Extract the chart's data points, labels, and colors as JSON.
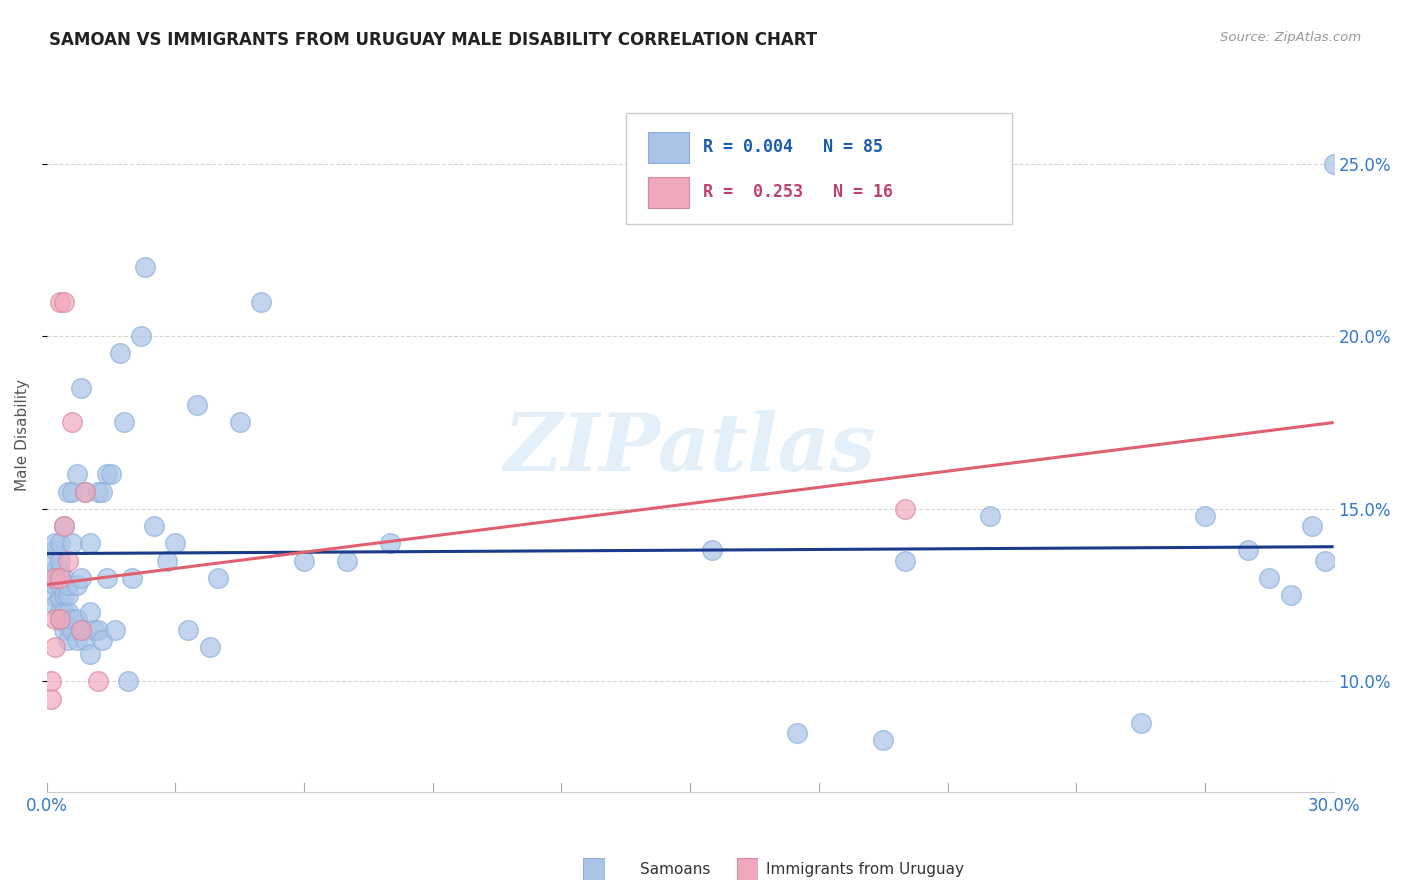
{
  "title": "SAMOAN VS IMMIGRANTS FROM URUGUAY MALE DISABILITY CORRELATION CHART",
  "source": "Source: ZipAtlas.com",
  "ylabel": "Male Disability",
  "ylabel_right_vals": [
    0.1,
    0.15,
    0.2,
    0.25
  ],
  "xlim": [
    0.0,
    0.3
  ],
  "ylim": [
    0.068,
    0.275
  ],
  "watermark": "ZIPatlas",
  "blue_color": "#aac4e8",
  "pink_color": "#f0a8bc",
  "line_blue_color": "#1a3a8c",
  "line_pink_color": "#e06070",
  "grid_color": "#cccccc",
  "background_color": "#ffffff",
  "samoans_x": [
    0.001,
    0.001,
    0.001,
    0.002,
    0.002,
    0.002,
    0.002,
    0.002,
    0.003,
    0.003,
    0.003,
    0.003,
    0.003,
    0.003,
    0.003,
    0.004,
    0.004,
    0.004,
    0.004,
    0.004,
    0.005,
    0.005,
    0.005,
    0.005,
    0.005,
    0.005,
    0.006,
    0.006,
    0.006,
    0.006,
    0.007,
    0.007,
    0.007,
    0.007,
    0.008,
    0.008,
    0.008,
    0.009,
    0.009,
    0.01,
    0.01,
    0.01,
    0.011,
    0.012,
    0.012,
    0.013,
    0.013,
    0.014,
    0.014,
    0.015,
    0.016,
    0.017,
    0.018,
    0.019,
    0.02,
    0.022,
    0.023,
    0.025,
    0.028,
    0.03,
    0.033,
    0.035,
    0.038,
    0.04,
    0.045,
    0.05,
    0.06,
    0.07,
    0.08,
    0.155,
    0.175,
    0.195,
    0.2,
    0.22,
    0.255,
    0.27,
    0.28,
    0.285,
    0.29,
    0.295,
    0.298,
    0.3
  ],
  "samoans_y": [
    0.125,
    0.13,
    0.135,
    0.122,
    0.128,
    0.132,
    0.138,
    0.14,
    0.118,
    0.12,
    0.124,
    0.128,
    0.132,
    0.135,
    0.14,
    0.115,
    0.12,
    0.125,
    0.13,
    0.145,
    0.112,
    0.116,
    0.12,
    0.125,
    0.128,
    0.155,
    0.115,
    0.118,
    0.14,
    0.155,
    0.112,
    0.118,
    0.128,
    0.16,
    0.115,
    0.13,
    0.185,
    0.112,
    0.155,
    0.108,
    0.12,
    0.14,
    0.115,
    0.115,
    0.155,
    0.112,
    0.155,
    0.13,
    0.16,
    0.16,
    0.115,
    0.195,
    0.175,
    0.1,
    0.13,
    0.2,
    0.22,
    0.145,
    0.135,
    0.14,
    0.115,
    0.18,
    0.11,
    0.13,
    0.175,
    0.21,
    0.135,
    0.135,
    0.14,
    0.138,
    0.085,
    0.083,
    0.135,
    0.148,
    0.088,
    0.148,
    0.138,
    0.13,
    0.125,
    0.145,
    0.135,
    0.25
  ],
  "uruguay_x": [
    0.001,
    0.001,
    0.002,
    0.002,
    0.002,
    0.003,
    0.003,
    0.003,
    0.004,
    0.004,
    0.005,
    0.006,
    0.008,
    0.009,
    0.012,
    0.2
  ],
  "uruguay_y": [
    0.1,
    0.095,
    0.11,
    0.118,
    0.13,
    0.118,
    0.13,
    0.21,
    0.145,
    0.21,
    0.135,
    0.175,
    0.115,
    0.155,
    0.1,
    0.15
  ],
  "blue_trend_x": [
    0.0,
    0.3
  ],
  "blue_trend_y": [
    0.137,
    0.139
  ],
  "pink_trend_x": [
    0.0,
    0.3
  ],
  "pink_trend_y": [
    0.128,
    0.175
  ]
}
